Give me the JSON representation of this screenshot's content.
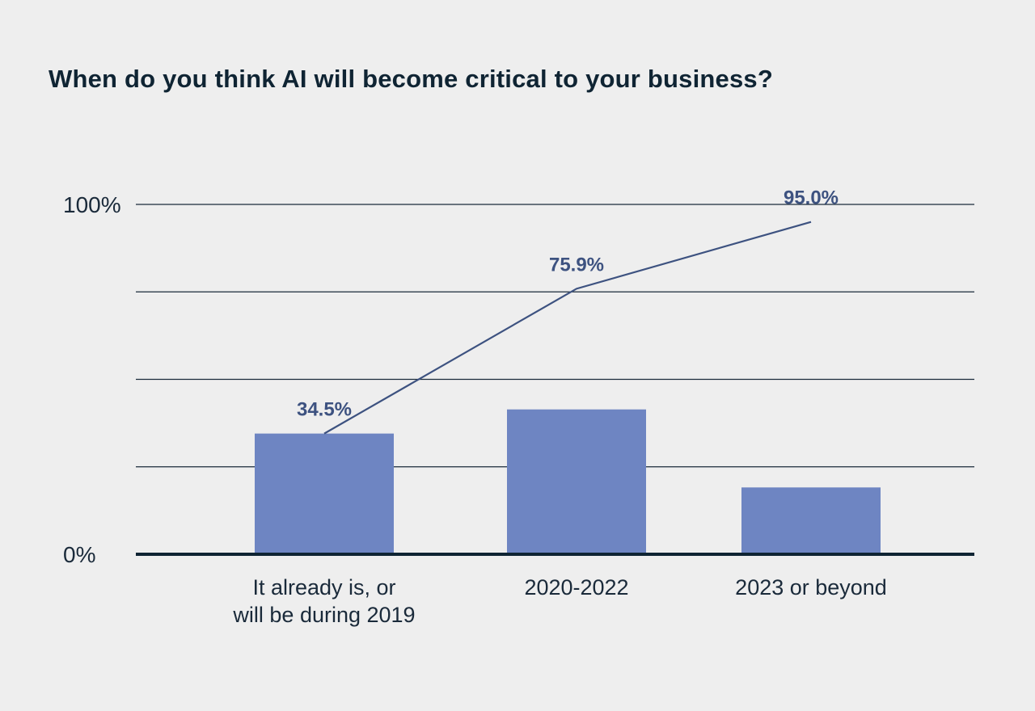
{
  "chart_data": {
    "type": "bar",
    "title": "When do you think AI will become critical to your business?",
    "categories": [
      [
        "It already is, or",
        "will be during 2019"
      ],
      [
        "2020-2022"
      ],
      [
        "2023 or beyond"
      ]
    ],
    "series": [
      {
        "type": "bar",
        "values": [
          34.5,
          41.4,
          19.1
        ]
      },
      {
        "type": "line",
        "values": [
          34.5,
          75.9,
          95.0
        ],
        "labels": [
          "34.5%",
          "75.9%",
          "95.0%"
        ]
      }
    ],
    "y_tick_labels": [
      "0%",
      "100%"
    ],
    "ylim": [
      0,
      100
    ],
    "gridlines": [
      25,
      50,
      75,
      100
    ],
    "grid": true,
    "colors": {
      "bar": "#6e85c2",
      "line": "#3d5280",
      "line_label": "#3d5280",
      "grid": "#1a2a3a",
      "axis": "#0f2433"
    }
  }
}
